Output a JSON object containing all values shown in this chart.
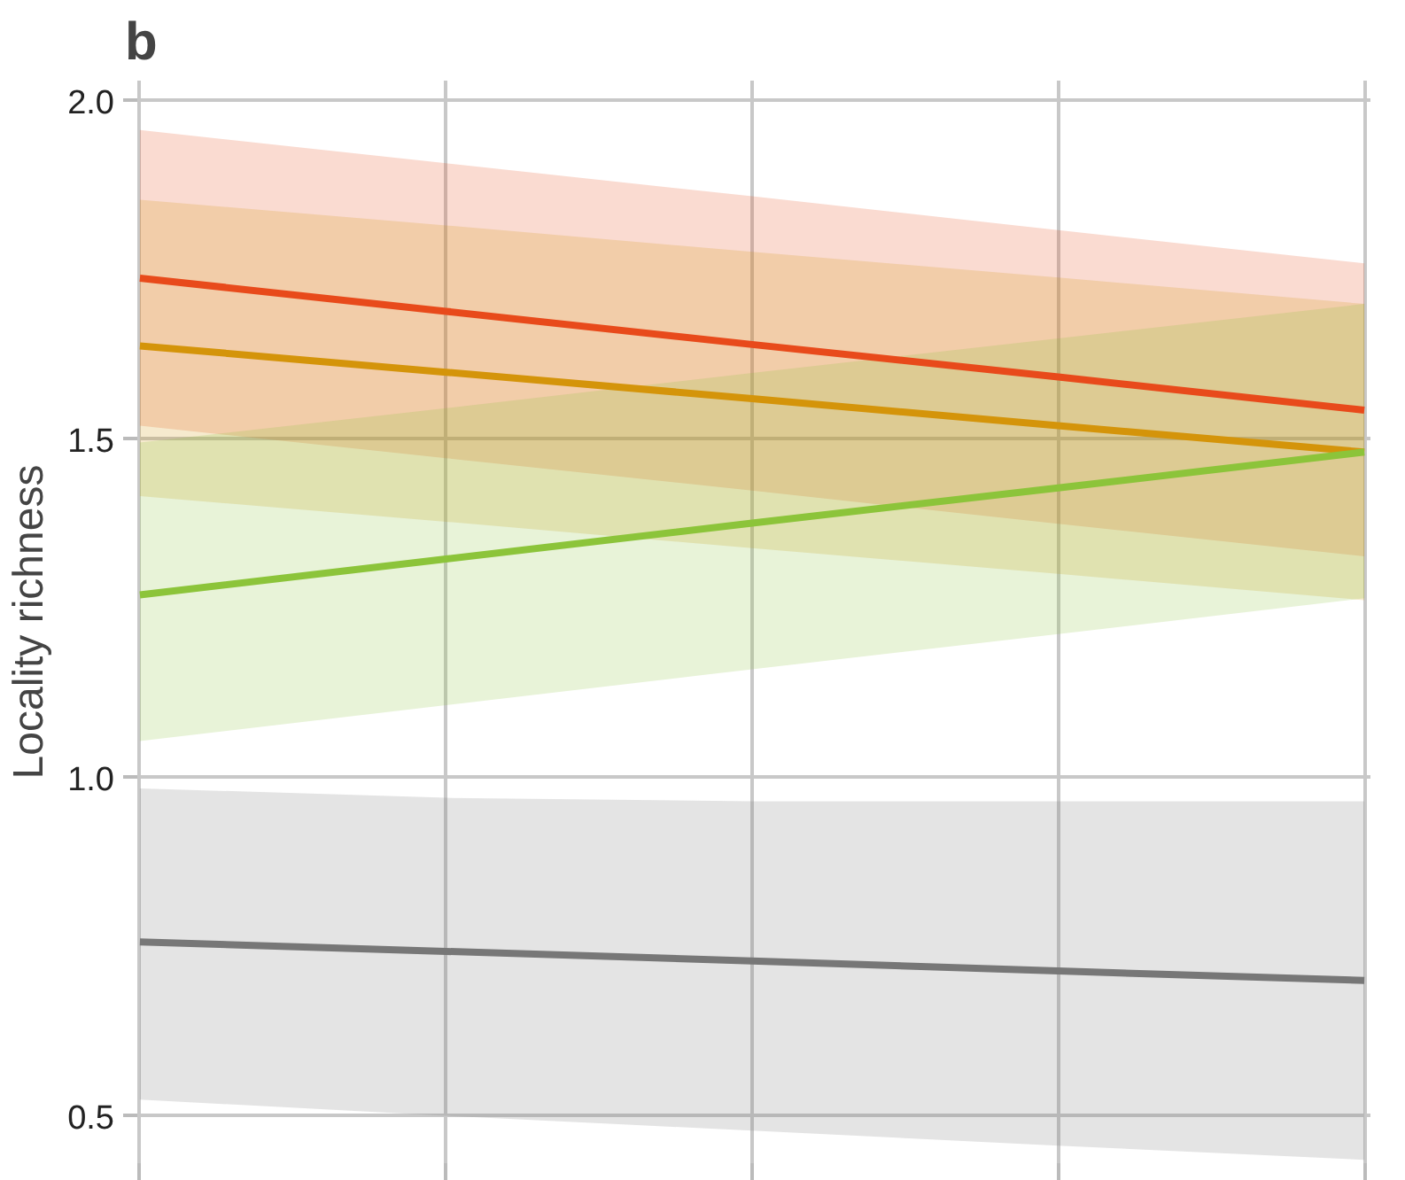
{
  "chart_data": {
    "type": "line",
    "title": "b",
    "ylabel": "Locality richness",
    "categories": [
      null,
      null,
      null,
      null,
      null
    ],
    "ylim": [
      0.43,
      2.03
    ],
    "yticks": [
      0.5,
      {
        "value": 1,
        "label": "1.0"
      },
      1.5,
      {
        "value": 2,
        "label": "2.0"
      }
    ],
    "grid": true,
    "tick_labels": "y",
    "series": [
      {
        "color": "#e84a1b",
        "values": [
          1.738,
          1.689,
          1.64,
          1.592,
          1.543
        ],
        "lower": [
          1.52,
          1.472,
          1.424,
          1.375,
          1.327
        ],
        "upper": [
          1.957,
          1.908,
          1.859,
          1.809,
          1.76
        ]
      },
      {
        "color": "#d4940a",
        "values": [
          1.638,
          1.599,
          1.56,
          1.52,
          1.481
        ],
        "lower": [
          1.416,
          1.378,
          1.339,
          1.301,
          1.262
        ],
        "upper": [
          1.854,
          1.816,
          1.777,
          1.739,
          1.7
        ]
      },
      {
        "color": "#8cc43a",
        "values": [
          1.27,
          1.323,
          1.376,
          1.428,
          1.481
        ],
        "lower": [
          1.054,
          1.107,
          1.16,
          1.212,
          1.265
        ],
        "upper": [
          1.495,
          1.546,
          1.598,
          1.649,
          1.7
        ]
      },
      {
        "color": "#777777",
        "values": [
          0.757,
          0.743,
          0.729,
          0.714,
          0.7
        ],
        "lower": [
          0.524,
          0.5,
          0.478,
          0.456,
          0.435
        ],
        "upper": [
          0.984,
          0.97,
          0.965,
          0.965,
          0.965
        ]
      }
    ]
  }
}
